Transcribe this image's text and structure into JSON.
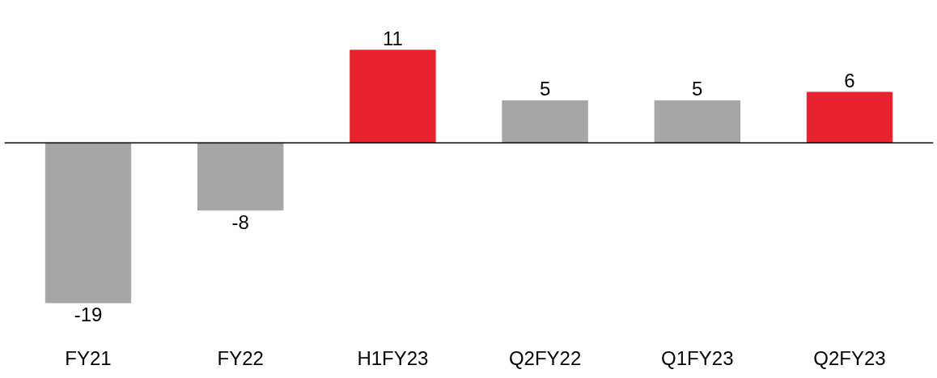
{
  "chart_data": {
    "type": "bar",
    "categories": [
      "FY21",
      "FY22",
      "H1FY23",
      "Q2FY22",
      "Q1FY23",
      "Q2FY23"
    ],
    "values": [
      -19,
      -8,
      11,
      5,
      5,
      6
    ],
    "colors": [
      "#a6a6a6",
      "#a6a6a6",
      "#e8232f",
      "#a6a6a6",
      "#a6a6a6",
      "#e8232f"
    ],
    "data_labels": true,
    "grid": false
  }
}
